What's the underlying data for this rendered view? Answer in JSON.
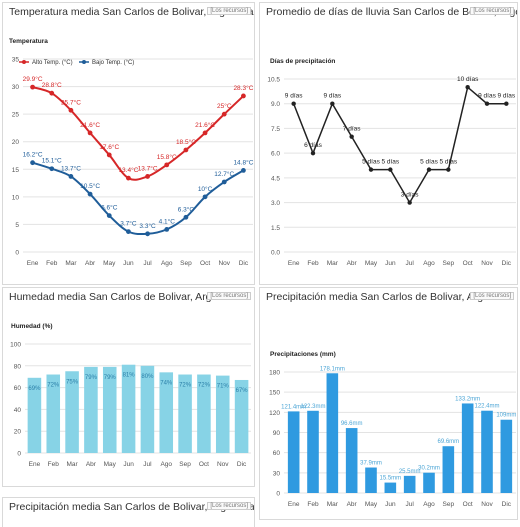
{
  "panels": {
    "temp": {
      "title": "Temperatura media San Carlos de Bolivar, Argentina",
      "source": "[Los recursos]"
    },
    "rain_days": {
      "title": "Promedio de días de lluvia San Carlos de Bolivar, Argentina",
      "source": "[Los recursos]"
    },
    "humidity": {
      "title": "Humedad media San Carlos de Bolivar, Argentina",
      "source": "[Los recursos]"
    },
    "precip": {
      "title": "Precipitación media San Carlos de Bolivar, Argentina",
      "source": "[Los recursos]"
    },
    "cut_off": {
      "title": "Precipitación media San Carlos de Bolivar, Argentina",
      "source": "[Los recursos]"
    }
  },
  "colors": {
    "red": "#d62728",
    "blue": "#1f5d99",
    "bar": "#87d3e6",
    "bar_label": "#4da6d6",
    "precip_bar": "#2f9ae0",
    "black": "#222222"
  },
  "chart_data": [
    {
      "type": "line",
      "title": "Temperatura",
      "categories": [
        "Ene",
        "Feb",
        "Mar",
        "Abr",
        "May",
        "Jun",
        "Jul",
        "Ago",
        "Sep",
        "Oct",
        "Nov",
        "Dic"
      ],
      "series": [
        {
          "name": "Alto Temp. (°C)",
          "values": [
            29.9,
            28.8,
            25.7,
            21.6,
            17.6,
            13.4,
            13.7,
            15.8,
            18.5,
            21.6,
            25,
            28.3
          ],
          "labels": [
            "29.9°C",
            "28.8°C",
            "25.7°C",
            "21.6°C",
            "17.6°C",
            "13.4°C",
            "13.7°C",
            "15.8°C",
            "18.5°C",
            "21.6°C",
            "25°C",
            "28.3°C"
          ]
        },
        {
          "name": "Bajo Temp. (°C)",
          "values": [
            16.2,
            15.1,
            13.7,
            10.5,
            6.6,
            3.7,
            3.3,
            4.1,
            6.3,
            10,
            12.7,
            14.8
          ],
          "labels": [
            "16.2°C",
            "15.1°C",
            "13.7°C",
            "10.5°C",
            "6.6°C",
            "3.7°C",
            "3.3°C",
            "4.1°C",
            "6.3°C",
            "10°C",
            "12.7°C",
            "14.8°C"
          ]
        }
      ],
      "yticks": [
        "0",
        "5",
        "10",
        "15",
        "20",
        "25",
        "30",
        "35"
      ],
      "ylim": [
        0,
        35
      ],
      "legend": "top-left"
    },
    {
      "type": "line",
      "title": "Días de precipitación",
      "categories": [
        "Ene",
        "Feb",
        "Mar",
        "Abr",
        "May",
        "Jun",
        "Jul",
        "Ago",
        "Sep",
        "Oct",
        "Nov",
        "Dic"
      ],
      "series": [
        {
          "name": "",
          "values": [
            9,
            6,
            9,
            7,
            5,
            5,
            3,
            5,
            5,
            10,
            9,
            9
          ],
          "labels": [
            "9 días",
            "6 días",
            "9 días",
            "7 días",
            "5 días",
            "5 días",
            "3 días",
            "5 días",
            "5 días",
            "10 días",
            "9 días",
            "9 días"
          ]
        }
      ],
      "yticks": [
        "0.0",
        "1.5",
        "3.0",
        "4.5",
        "6.0",
        "7.5",
        "9.0",
        "10.5"
      ],
      "ylim": [
        0,
        10.5
      ]
    },
    {
      "type": "bar",
      "title": "Humedad (%)",
      "categories": [
        "Ene",
        "Feb",
        "Mar",
        "Abr",
        "May",
        "Jun",
        "Jul",
        "Ago",
        "Sep",
        "Oct",
        "Nov",
        "Dic"
      ],
      "values": [
        69,
        72,
        75,
        79,
        79,
        81,
        80,
        74,
        72,
        72,
        71,
        67
      ],
      "labels": [
        "69%",
        "72%",
        "75%",
        "79%",
        "79%",
        "81%",
        "80%",
        "74%",
        "72%",
        "72%",
        "71%",
        "67%"
      ],
      "yticks": [
        "0",
        "20",
        "40",
        "60",
        "80",
        "100"
      ],
      "ylim": [
        0,
        100
      ]
    },
    {
      "type": "bar",
      "title": "Precipitaciones (mm)",
      "categories": [
        "Ene",
        "Feb",
        "Mar",
        "Abr",
        "May",
        "Jun",
        "Jul",
        "Ago",
        "Sep",
        "Oct",
        "Nov",
        "Dic"
      ],
      "values": [
        121.4,
        122.3,
        178.1,
        96.6,
        37.9,
        15.5,
        25.5,
        30.2,
        69.6,
        133.2,
        122.4,
        109
      ],
      "labels": [
        "121.4mm",
        "122.3mm",
        "178.1mm",
        "96.6mm",
        "37.9mm",
        "15.5mm",
        "25.5mm",
        "30.2mm",
        "69.6mm",
        "133.2mm",
        "122.4mm",
        "109mm"
      ],
      "yticks": [
        "0",
        "30",
        "60",
        "90",
        "120",
        "150",
        "180"
      ],
      "ylim": [
        0,
        180
      ]
    }
  ]
}
